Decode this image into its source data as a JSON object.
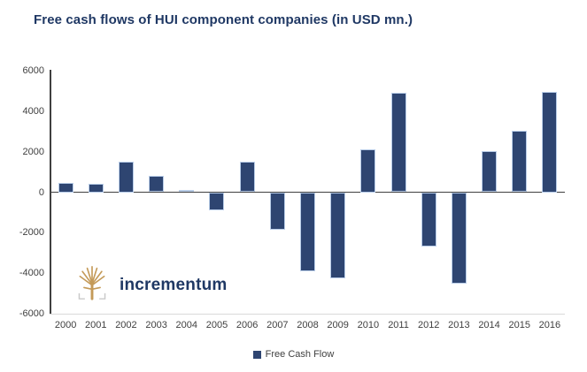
{
  "title": "Free cash flows of HUI component companies (in USD mn.)",
  "logo": {
    "text": "incrementum"
  },
  "legend": {
    "label": "Free Cash Flow"
  },
  "colors": {
    "bar": "#2e4571",
    "bar_border": "#b9cde8",
    "title": "#1f3864",
    "axis": "#404040",
    "tick_text": "#404040",
    "logo_text": "#1f3864",
    "logo_tree": "#c49a58",
    "logo_bracket": "#c9c9c9"
  },
  "chart_data": {
    "type": "bar",
    "title": "Free cash flows of HUI component companies (in USD mn.)",
    "categories": [
      "2000",
      "2001",
      "2002",
      "2003",
      "2004",
      "2005",
      "2006",
      "2007",
      "2008",
      "2009",
      "2010",
      "2011",
      "2012",
      "2013",
      "2014",
      "2015",
      "2016"
    ],
    "values": [
      450,
      420,
      1500,
      800,
      100,
      -900,
      1520,
      -1850,
      -3900,
      -4250,
      2100,
      4900,
      -2700,
      -4500,
      2050,
      3050,
      4950
    ],
    "series_name": "Free Cash Flow",
    "xlabel": "",
    "ylabel": "",
    "ylim": [
      -6000,
      6000
    ],
    "yticks": [
      6000,
      4000,
      2000,
      0,
      -2000,
      -4000,
      -6000
    ],
    "grid": false,
    "legend_position": "bottom"
  }
}
